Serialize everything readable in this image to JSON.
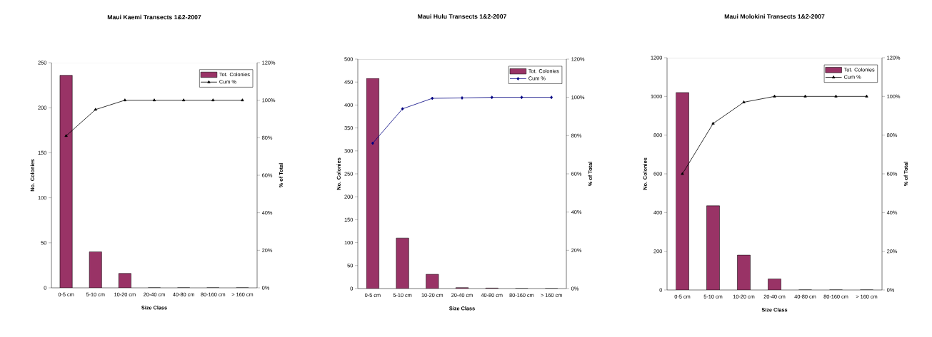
{
  "chart_data": [
    {
      "type": "bar",
      "title": "Maui Kaemi Transects 1&2-2007",
      "xlabel": "Size Class",
      "ylabel": "No. Colonies",
      "y2label": "% of Total",
      "categories": [
        "0-5 cm",
        "5-10 cm",
        "10-20 cm",
        "20-40 cm",
        "40-80 cm",
        "80-160 cm",
        "> 160 cm"
      ],
      "series": [
        {
          "name": "Tot. Colonies",
          "color": "#993366",
          "values": [
            236,
            40,
            16,
            0,
            0,
            0,
            0
          ]
        },
        {
          "name": "Cum %",
          "type": "line",
          "axis": "y2",
          "color": "#000000",
          "marker": "triangle",
          "values": [
            81,
            95,
            100,
            100,
            100,
            100,
            100
          ]
        }
      ],
      "ylim": [
        0,
        250
      ],
      "yticks": [
        0,
        50,
        100,
        150,
        200,
        250
      ],
      "y2lim": [
        0,
        120
      ],
      "y2ticks": [
        {
          "value": 0,
          "label": "0%"
        },
        {
          "value": 20,
          "label": "20%"
        },
        {
          "value": 40,
          "label": "40%"
        },
        {
          "value": 60,
          "label": "60%"
        },
        {
          "value": 80,
          "label": "80%"
        },
        {
          "value": 100,
          "label": "100%"
        },
        {
          "value": 120,
          "label": "120%"
        }
      ],
      "legend": "top right"
    },
    {
      "type": "bar",
      "title": "Maui Hulu Transects 1&2-2007",
      "xlabel": "Size Class",
      "ylabel": "No. Colonies",
      "y2label": "% of Total",
      "categories": [
        "0-5 cm",
        "5-10 cm",
        "10-20 cm",
        "20-40 cm",
        "40-80 cm",
        "80-160 cm",
        "> 160 cm"
      ],
      "series": [
        {
          "name": "Tot. Colonies",
          "color": "#993366",
          "values": [
            458,
            110,
            31,
            2,
            1,
            0,
            0
          ]
        },
        {
          "name": "Cum %",
          "type": "line",
          "axis": "y2",
          "color": "#000080",
          "marker": "diamond",
          "values": [
            76,
            94,
            99.5,
            99.7,
            100,
            100,
            100
          ]
        }
      ],
      "ylim": [
        0,
        500
      ],
      "yticks": [
        0,
        50,
        100,
        150,
        200,
        250,
        300,
        350,
        400,
        450,
        500
      ],
      "y2lim": [
        0,
        120
      ],
      "y2ticks": [
        {
          "value": 0,
          "label": "0%"
        },
        {
          "value": 20,
          "label": "20%"
        },
        {
          "value": 40,
          "label": "40%"
        },
        {
          "value": 60,
          "label": "60%"
        },
        {
          "value": 80,
          "label": "80%"
        },
        {
          "value": 100,
          "label": "100%"
        },
        {
          "value": 120,
          "label": "120%"
        }
      ],
      "legend": "top right"
    },
    {
      "type": "bar",
      "title": "Maui Molokini Transects 1&2-2007",
      "xlabel": "Size Class",
      "ylabel": "No. Colonies",
      "y2label": "% of Total",
      "categories": [
        "0-5 cm",
        "5-10 cm",
        "10-20 cm",
        "20-40 cm",
        "40-80 cm",
        "80-160 cm",
        "> 160 cm"
      ],
      "series": [
        {
          "name": "Tot. Colonies",
          "color": "#993366",
          "values": [
            1020,
            435,
            180,
            57,
            0,
            0,
            0
          ]
        },
        {
          "name": "Cum %",
          "type": "line",
          "axis": "y2",
          "color": "#000000",
          "marker": "triangle",
          "values": [
            60,
            86,
            97,
            100,
            100,
            100,
            100
          ]
        }
      ],
      "ylim": [
        0,
        1200
      ],
      "yticks": [
        0,
        200,
        400,
        600,
        800,
        1000,
        1200
      ],
      "y2lim": [
        0,
        120
      ],
      "y2ticks": [
        {
          "value": 0,
          "label": "0%"
        },
        {
          "value": 20,
          "label": "20%"
        },
        {
          "value": 40,
          "label": "40%"
        },
        {
          "value": 60,
          "label": "60%"
        },
        {
          "value": 80,
          "label": "80%"
        },
        {
          "value": 100,
          "label": "100%"
        },
        {
          "value": 120,
          "label": "120%"
        }
      ],
      "legend": "top right"
    }
  ]
}
